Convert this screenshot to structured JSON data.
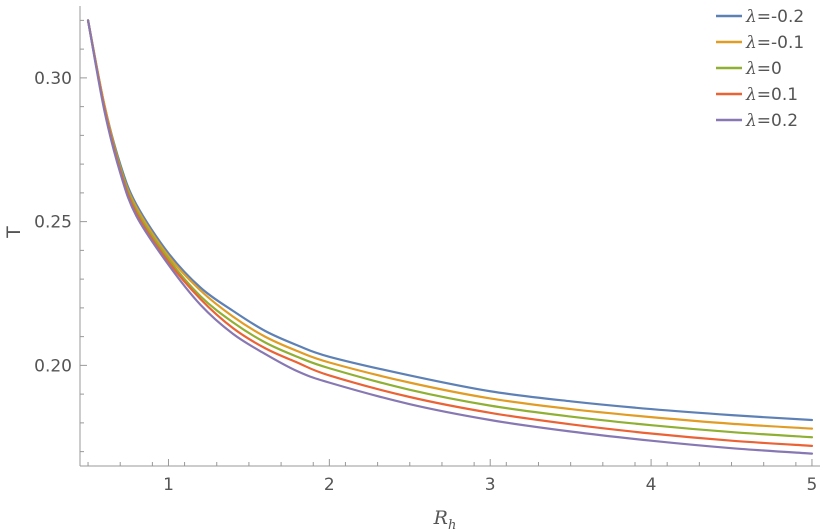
{
  "chart_data": {
    "type": "line",
    "title": "",
    "xlabel": "R",
    "xlabel_sub": "h",
    "ylabel": "T",
    "xlim": [
      0.45,
      5.05
    ],
    "ylim": [
      0.165,
      0.325
    ],
    "x_ticks": [
      1,
      2,
      3,
      4,
      5
    ],
    "x_tick_labels": [
      "1",
      "2",
      "3",
      "4",
      "5"
    ],
    "y_ticks": [
      0.2,
      0.25,
      0.3
    ],
    "y_tick_labels": [
      "0.20",
      "0.25",
      "0.30"
    ],
    "grid": false,
    "legend_position": "top-right",
    "x": [
      0.5,
      0.6,
      0.7,
      0.8,
      1.0,
      1.2,
      1.4,
      1.6,
      1.8,
      2.0,
      2.5,
      3.0,
      3.5,
      4.0,
      4.5,
      5.0
    ],
    "series": [
      {
        "name": "λ=-0.2",
        "symbol": "λ",
        "value_text": "=-0.2",
        "color": "#5E81B5",
        "values": [
          0.32,
          0.291,
          0.27,
          0.256,
          0.239,
          0.227,
          0.219,
          0.212,
          0.207,
          0.203,
          0.1965,
          0.191,
          0.1875,
          0.1848,
          0.1827,
          0.181
        ]
      },
      {
        "name": "λ=-0.1",
        "symbol": "λ",
        "value_text": "=-0.1",
        "color": "#E19C24",
        "values": [
          0.32,
          0.291,
          0.269,
          0.255,
          0.238,
          0.226,
          0.217,
          0.21,
          0.205,
          0.201,
          0.194,
          0.1885,
          0.1848,
          0.182,
          0.1797,
          0.178
        ]
      },
      {
        "name": "λ=0",
        "symbol": "λ",
        "value_text": "=0",
        "color": "#8FB032",
        "values": [
          0.32,
          0.29,
          0.269,
          0.254,
          0.237,
          0.224,
          0.215,
          0.208,
          0.203,
          0.199,
          0.1915,
          0.186,
          0.1822,
          0.1792,
          0.1768,
          0.175
        ]
      },
      {
        "name": "λ=0.1",
        "symbol": "λ",
        "value_text": "=0.1",
        "color": "#EB6235",
        "values": [
          0.32,
          0.29,
          0.268,
          0.253,
          0.236,
          0.223,
          0.213,
          0.206,
          0.201,
          0.1965,
          0.189,
          0.1835,
          0.1795,
          0.1763,
          0.1738,
          0.172
        ]
      },
      {
        "name": "λ=0.2",
        "symbol": "λ",
        "value_text": "=0.2",
        "color": "#8778B3",
        "values": [
          0.32,
          0.289,
          0.267,
          0.252,
          0.235,
          0.221,
          0.211,
          0.204,
          0.198,
          0.194,
          0.1865,
          0.181,
          0.177,
          0.1738,
          0.1712,
          0.1693
        ]
      }
    ]
  }
}
